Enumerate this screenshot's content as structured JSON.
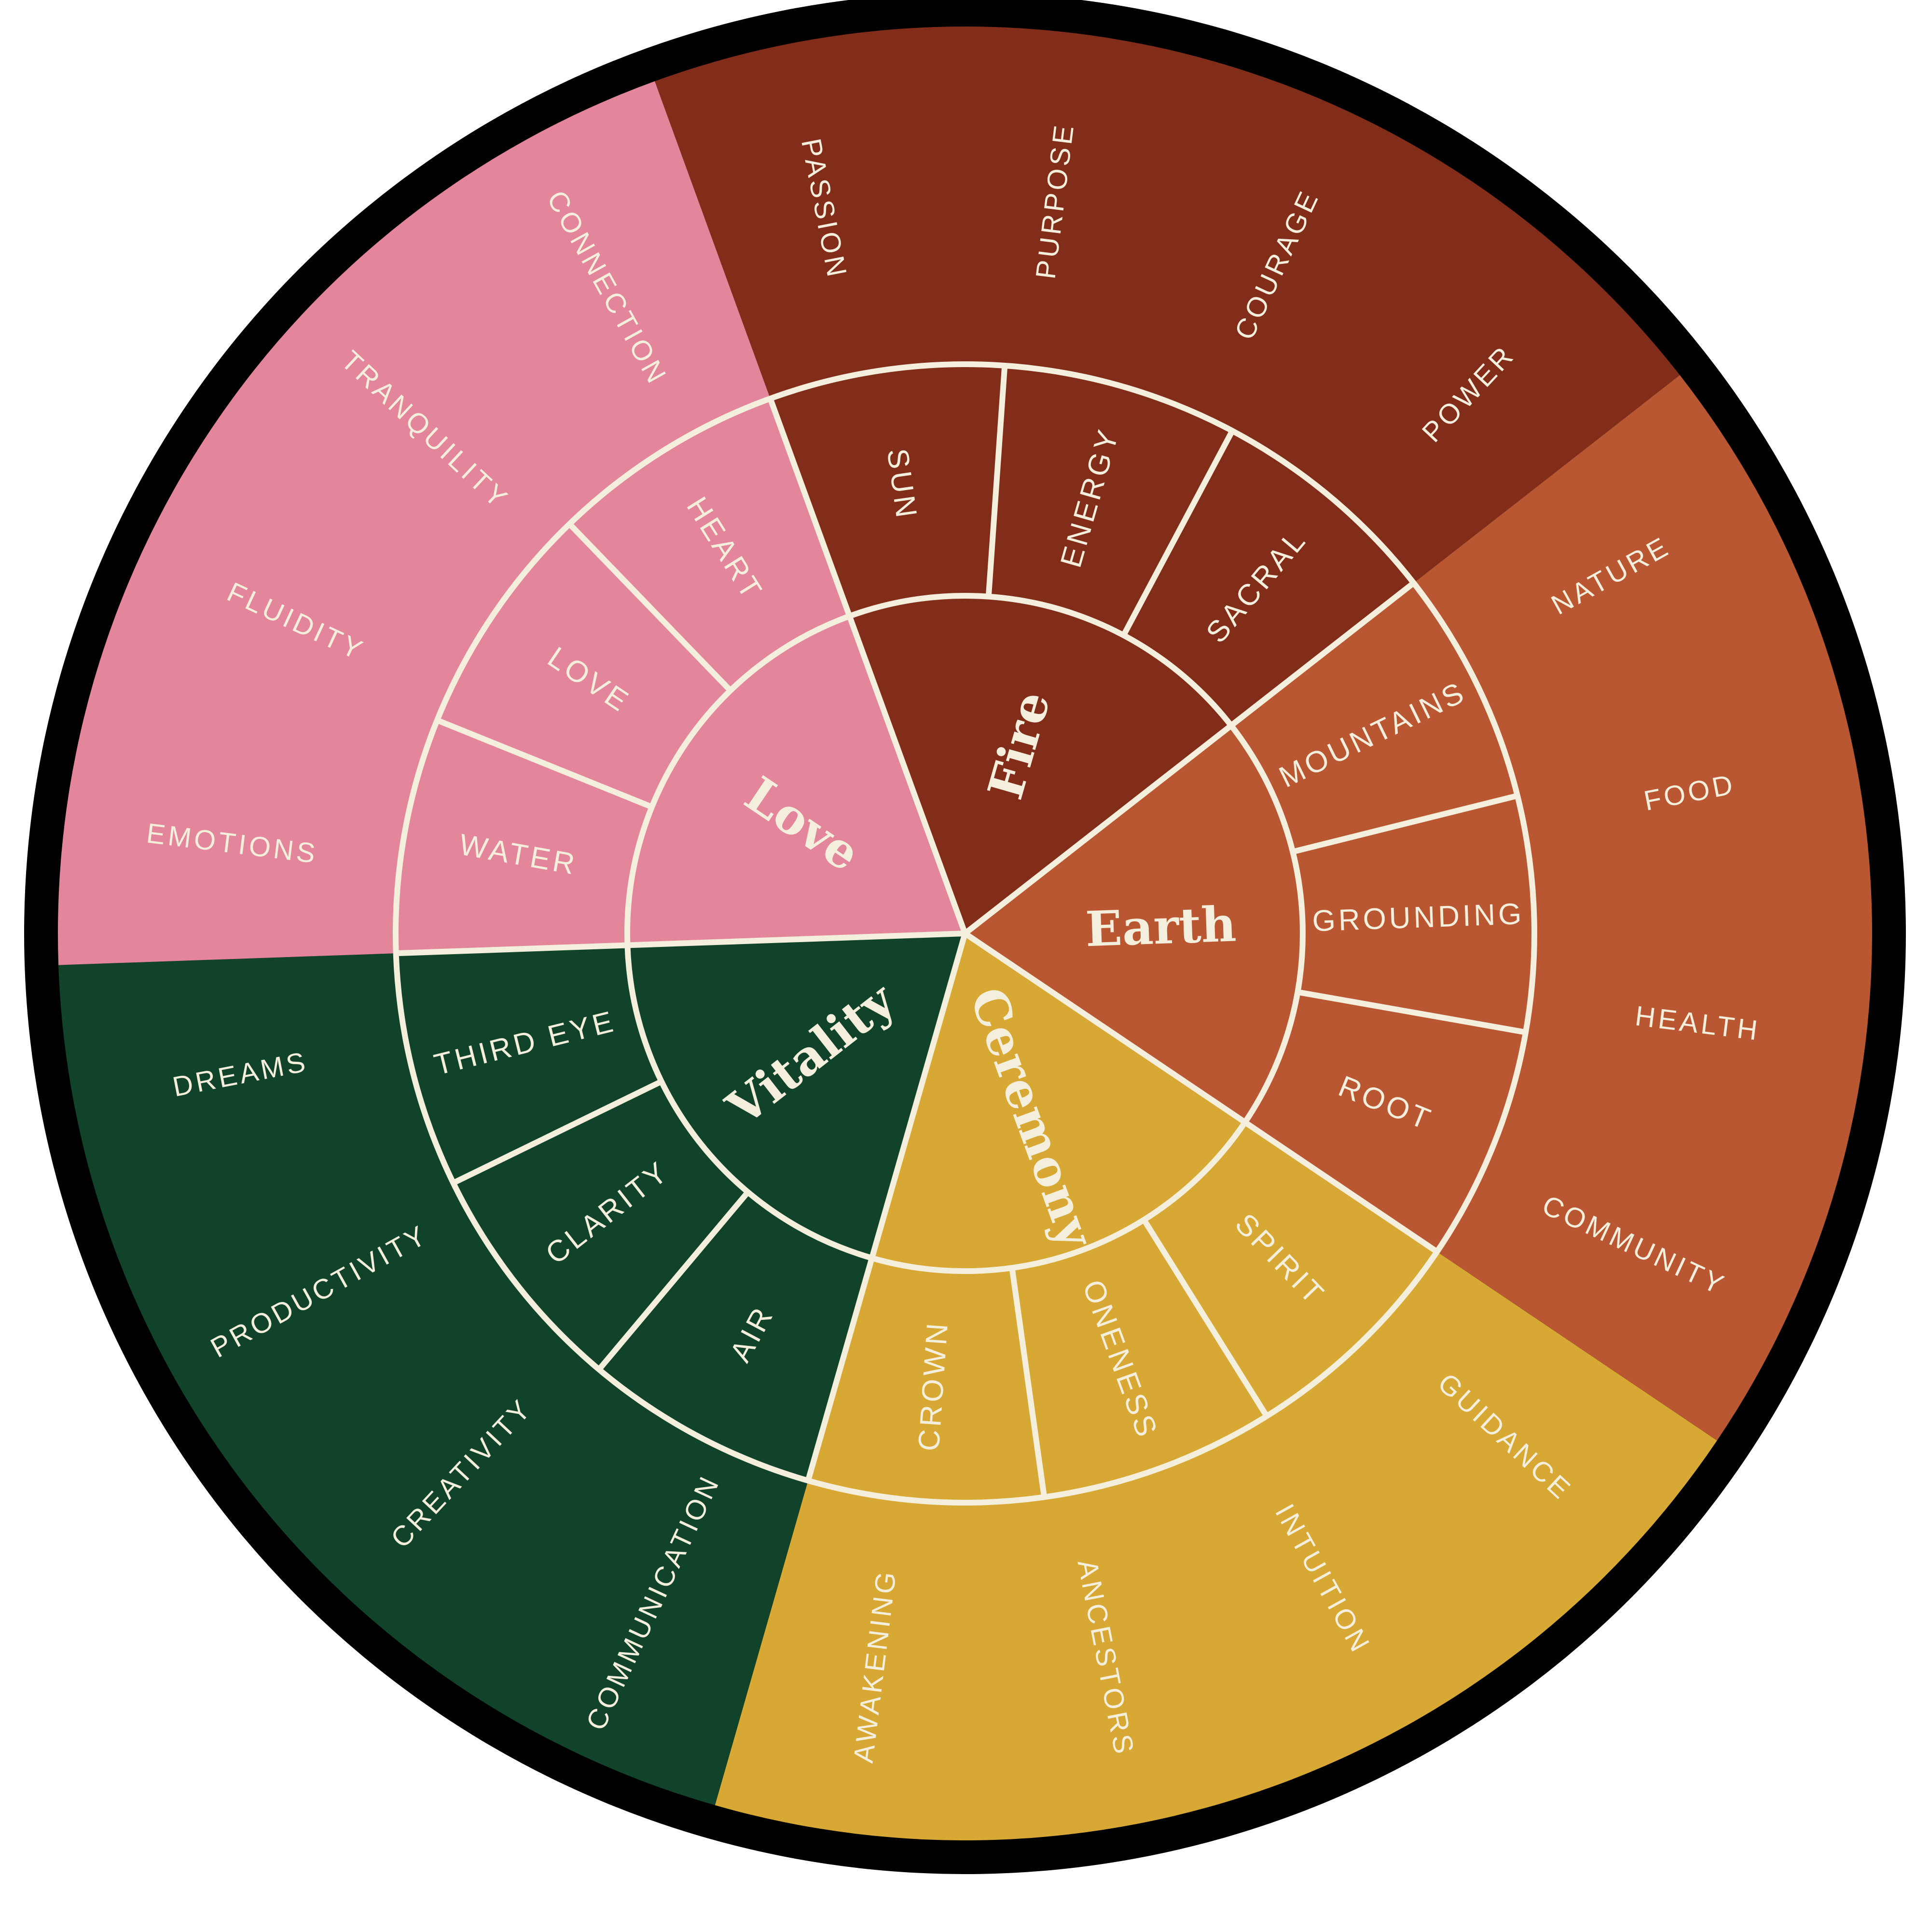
{
  "wheel": {
    "colors": {
      "outline": "#000000",
      "divider": "#f4eedc",
      "label": "#f4eedc"
    },
    "sections": [
      {
        "center": "Fire",
        "color": "#812d1a",
        "middle": [
          "SUN",
          "ENERGY",
          "SACRAL"
        ],
        "outer": [
          "PASSION",
          "PURPOSE",
          "COURAGE",
          "POWER"
        ]
      },
      {
        "center": "Earth",
        "color": "#b95733",
        "middle": [
          "MOUNTAINS",
          "GROUNDING",
          "ROOT"
        ],
        "outer": [
          "NATURE",
          "FOOD",
          "HEALTH",
          "COMMUNITY"
        ]
      },
      {
        "center": "Ceremony",
        "color": "#d7a833",
        "middle": [
          "SPIRIT",
          "ONENESS",
          "CROWN"
        ],
        "outer": [
          "GUIDANCE",
          "INTUITION",
          "ANCESTORS",
          "AWAKENING"
        ]
      },
      {
        "center": "Vitality",
        "color": "#11432a",
        "middle": [
          "AIR",
          "CLARITY",
          "THIRD EYE"
        ],
        "outer": [
          "COMMUNICATION",
          "CREATIVITY",
          "PRODUCTIVITY",
          "DREAMS"
        ]
      },
      {
        "center": "Love",
        "color": "#e3869b",
        "middle": [
          "WATER",
          "LOVE",
          "HEART"
        ],
        "outer": [
          "EMOTIONS",
          "FLUIDITY",
          "TRANQUILITY",
          "CONNECTION"
        ]
      }
    ]
  }
}
